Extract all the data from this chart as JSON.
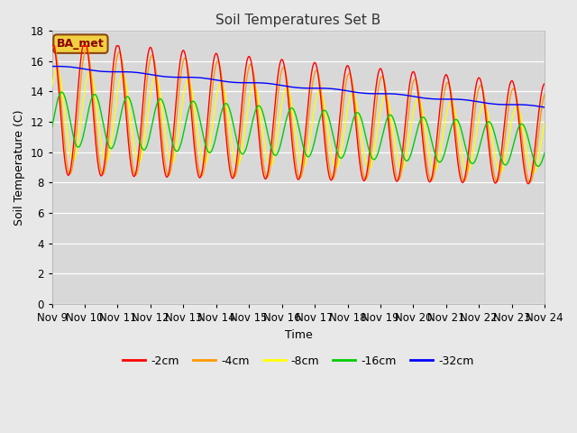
{
  "title": "Soil Temperatures Set B",
  "xlabel": "Time",
  "ylabel": "Soil Temperature (C)",
  "annotation": "BA_met",
  "ylim": [
    0,
    18
  ],
  "yticks": [
    0,
    2,
    4,
    6,
    8,
    10,
    12,
    14,
    16,
    18
  ],
  "xtick_labels": [
    "Nov 9",
    "Nov 10",
    "Nov 11",
    "Nov 12",
    "Nov 13",
    "Nov 14",
    "Nov 15",
    "Nov 16",
    "Nov 17",
    "Nov 18",
    "Nov 19",
    "Nov 20",
    "Nov 21",
    "Nov 22",
    "Nov 23",
    "Nov 24"
  ],
  "series_labels": [
    "-2cm",
    "-4cm",
    "-8cm",
    "-16cm",
    "-32cm"
  ],
  "series_colors": [
    "#ff0000",
    "#ff9900",
    "#ffff00",
    "#00cc00",
    "#0000ff"
  ],
  "fig_facecolor": "#e8e8e8",
  "plot_facecolor": "#d8d8d8"
}
